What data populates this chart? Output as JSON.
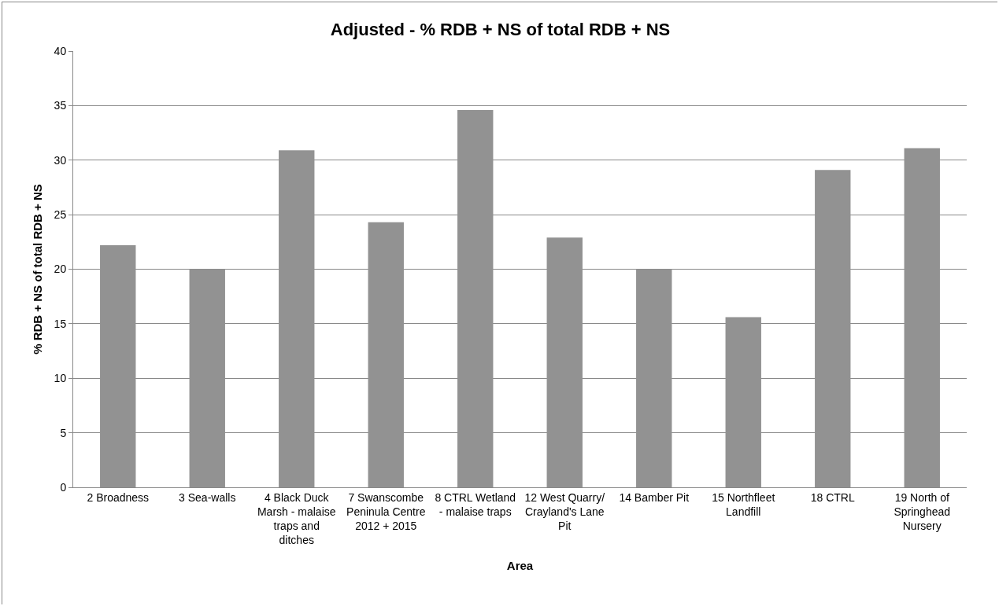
{
  "chart_data": {
    "type": "bar",
    "title": "Adjusted - % RDB + NS of total RDB + NS",
    "xlabel": "Area",
    "ylabel": "% RDB + NS of total RDB + NS",
    "categories": [
      "2 Broadness",
      "3 Sea-walls",
      "4 Black Duck Marsh - malaise traps and ditches",
      "7 Swanscombe Peninula Centre 2012 + 2015",
      "8 CTRL Wetland - malaise traps",
      "12 West Quarry/ Crayland's Lane Pit",
      "14 Bamber Pit",
      "15 Northfleet Landfill",
      "18 CTRL",
      "19 North of Springhead Nursery"
    ],
    "values": [
      22.2,
      20,
      30.9,
      24.3,
      34.6,
      22.9,
      20,
      15.6,
      29.1,
      31.1
    ],
    "color": "#929292",
    "ylim": [
      0,
      40
    ],
    "yticks": [
      0,
      5,
      10,
      15,
      20,
      25,
      30,
      35,
      40
    ],
    "grid": "y"
  }
}
